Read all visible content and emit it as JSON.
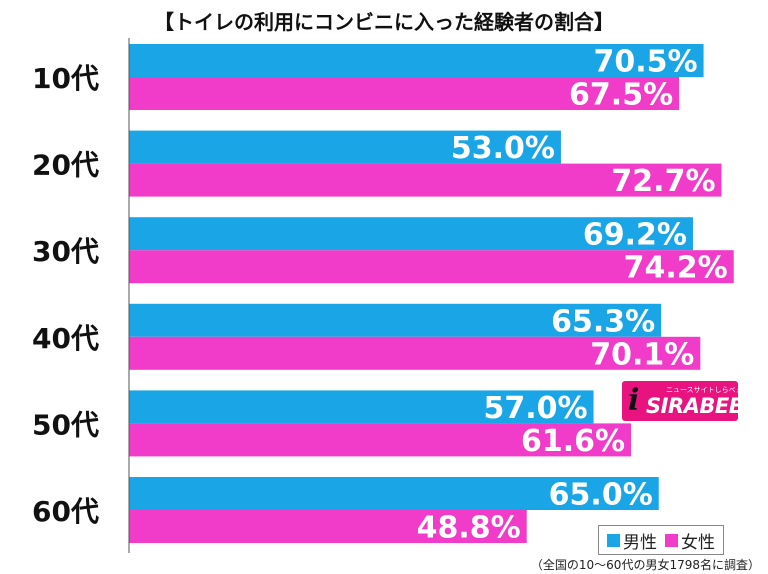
{
  "chart_data": {
    "type": "bar",
    "orientation": "horizontal",
    "title": "【トイレの利用にコンビニに入った経験者の割合】",
    "categories": [
      "10代",
      "20代",
      "30代",
      "40代",
      "50代",
      "60代"
    ],
    "series": [
      {
        "name": "男性",
        "color": "#1aa6e6",
        "values": [
          70.5,
          53.0,
          69.2,
          65.3,
          57.0,
          65.0
        ]
      },
      {
        "name": "女性",
        "color": "#f03cc8",
        "values": [
          67.5,
          72.7,
          74.2,
          70.1,
          61.6,
          48.8
        ]
      }
    ],
    "value_labels": {
      "男性": [
        "70.5%",
        "53.0%",
        "69.2%",
        "65.3%",
        "57.0%",
        "65.0%"
      ],
      "女性": [
        "67.5%",
        "72.7%",
        "74.2%",
        "70.1%",
        "61.6%",
        "48.8%"
      ]
    },
    "xlim": [
      0,
      100
    ],
    "unit": "%",
    "grid": false,
    "legend_position": "bottom-right"
  },
  "legend": {
    "male_label": "男性",
    "female_label": "女性"
  },
  "note": "（全国の10～60代の男女1798名に調査）",
  "logo": {
    "name": "SIRABEE",
    "subtitle": "ニュースサイトしらべぇ",
    "mark": "i",
    "color": "#e8137f"
  }
}
